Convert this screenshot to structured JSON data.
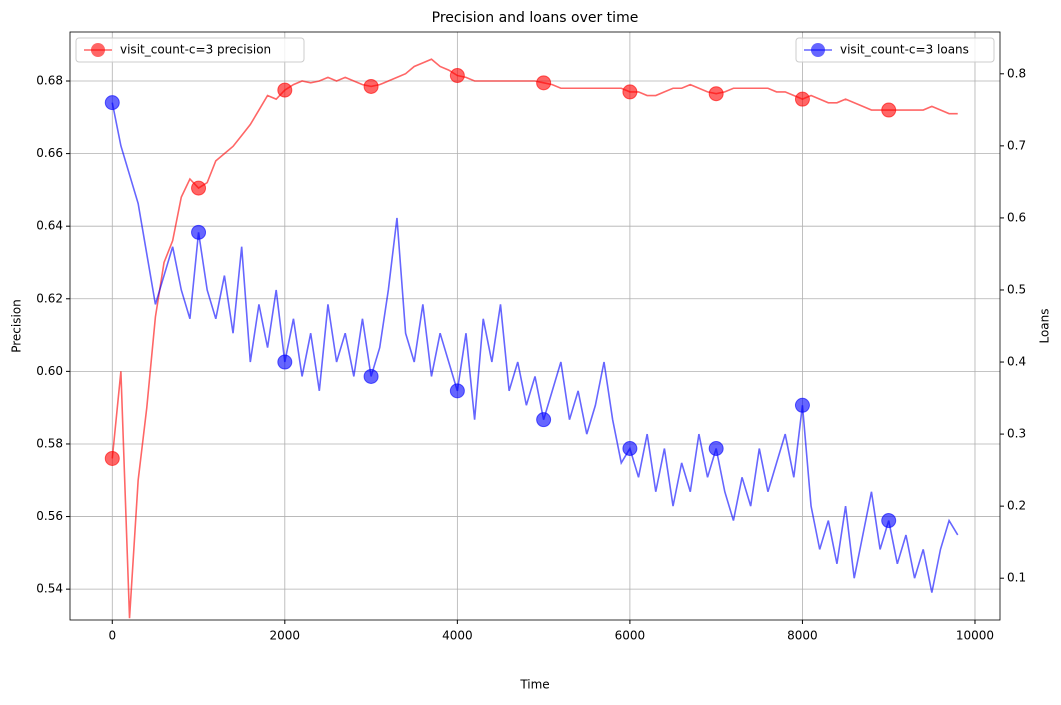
{
  "chart_data": {
    "type": "line",
    "title": "Precision and loans over time",
    "xlabel": "Time",
    "ylabel": "Precision",
    "y2label": "Loans",
    "x": [
      0,
      100,
      200,
      300,
      400,
      500,
      600,
      700,
      800,
      900,
      1000,
      1100,
      1200,
      1300,
      1400,
      1500,
      1600,
      1700,
      1800,
      1900,
      2000,
      2100,
      2200,
      2300,
      2400,
      2500,
      2600,
      2700,
      2800,
      2900,
      3000,
      3100,
      3200,
      3300,
      3400,
      3500,
      3600,
      3700,
      3800,
      3900,
      4000,
      4100,
      4200,
      4300,
      4400,
      4500,
      4600,
      4700,
      4800,
      4900,
      5000,
      5100,
      5200,
      5300,
      5400,
      5500,
      5600,
      5700,
      5800,
      5900,
      6000,
      6100,
      6200,
      6300,
      6400,
      6500,
      6600,
      6700,
      6800,
      6900,
      7000,
      7100,
      7200,
      7300,
      7400,
      7500,
      7600,
      7700,
      7800,
      7900,
      8000,
      8100,
      8200,
      8300,
      8400,
      8500,
      8600,
      8700,
      8800,
      8900,
      9000,
      9100,
      9200,
      9300,
      9400,
      9500,
      9600,
      9700,
      9800
    ],
    "series": [
      {
        "name": "visit_count-c=3 precision",
        "color": "#ff0000",
        "axis": "y",
        "legend": "upper left",
        "markevery": 10,
        "values": [
          0.576,
          0.6,
          0.532,
          0.57,
          0.59,
          0.615,
          0.63,
          0.636,
          0.648,
          0.653,
          0.6505,
          0.652,
          0.658,
          0.66,
          0.662,
          0.665,
          0.668,
          0.672,
          0.676,
          0.675,
          0.6775,
          0.679,
          0.68,
          0.6795,
          0.68,
          0.681,
          0.68,
          0.681,
          0.68,
          0.679,
          0.6785,
          0.679,
          0.68,
          0.681,
          0.682,
          0.684,
          0.685,
          0.686,
          0.684,
          0.683,
          0.6815,
          0.681,
          0.68,
          0.68,
          0.68,
          0.68,
          0.68,
          0.68,
          0.68,
          0.68,
          0.6795,
          0.679,
          0.678,
          0.678,
          0.678,
          0.678,
          0.678,
          0.678,
          0.678,
          0.678,
          0.677,
          0.677,
          0.676,
          0.676,
          0.677,
          0.678,
          0.678,
          0.679,
          0.678,
          0.677,
          0.6765,
          0.677,
          0.678,
          0.678,
          0.678,
          0.678,
          0.678,
          0.677,
          0.677,
          0.676,
          0.675,
          0.676,
          0.675,
          0.674,
          0.674,
          0.675,
          0.674,
          0.673,
          0.672,
          0.672,
          0.672,
          0.672,
          0.672,
          0.672,
          0.672,
          0.673,
          0.672,
          0.671,
          0.671
        ]
      },
      {
        "name": "visit_count-c=3 loans",
        "color": "#0000ff",
        "axis": "y2",
        "legend": "upper right",
        "markevery": 10,
        "values": [
          0.76,
          0.7,
          0.66,
          0.62,
          0.55,
          0.48,
          0.52,
          0.56,
          0.5,
          0.46,
          0.58,
          0.5,
          0.46,
          0.52,
          0.44,
          0.56,
          0.4,
          0.48,
          0.42,
          0.5,
          0.4,
          0.46,
          0.38,
          0.44,
          0.36,
          0.48,
          0.4,
          0.44,
          0.38,
          0.46,
          0.38,
          0.42,
          0.5,
          0.6,
          0.44,
          0.4,
          0.48,
          0.38,
          0.44,
          0.4,
          0.36,
          0.44,
          0.32,
          0.46,
          0.4,
          0.48,
          0.36,
          0.4,
          0.34,
          0.38,
          0.32,
          0.36,
          0.4,
          0.32,
          0.36,
          0.3,
          0.34,
          0.4,
          0.32,
          0.26,
          0.28,
          0.24,
          0.3,
          0.22,
          0.28,
          0.2,
          0.26,
          0.22,
          0.3,
          0.24,
          0.28,
          0.22,
          0.18,
          0.24,
          0.2,
          0.28,
          0.22,
          0.26,
          0.3,
          0.24,
          0.34,
          0.2,
          0.14,
          0.18,
          0.12,
          0.2,
          0.1,
          0.16,
          0.22,
          0.14,
          0.18,
          0.12,
          0.16,
          0.1,
          0.14,
          0.08,
          0.14,
          0.18,
          0.16
        ]
      }
    ],
    "xlim": [
      -490,
      10290
    ],
    "xticks": [
      0,
      2000,
      4000,
      6000,
      8000,
      10000
    ],
    "ylim": [
      0.5315,
      0.6935
    ],
    "yticks": [
      0.54,
      0.56,
      0.58,
      {
        "value": 0.6,
        "label": "0.60"
      },
      0.62,
      0.64,
      0.66,
      0.68
    ],
    "y2lim": [
      0.042,
      0.858
    ],
    "y2ticks": [
      0.1,
      0.2,
      0.3,
      0.4,
      0.5,
      0.6,
      0.7,
      0.8
    ],
    "grid": true
  }
}
